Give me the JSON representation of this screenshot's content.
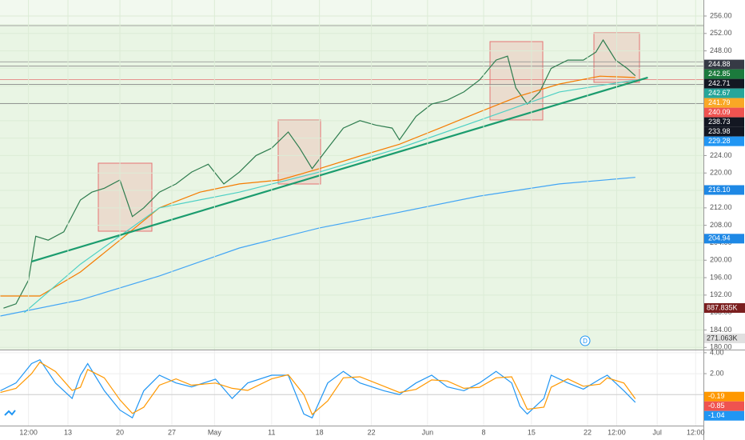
{
  "chart_data": [
    {
      "type": "line",
      "xlim": [
        -1.54,
        66.15
      ],
      "ylim": [
        179.5,
        259.67
      ],
      "yticks": [
        {
          "value": 256,
          "label": "256.00"
        },
        {
          "value": 252,
          "label": "252.00"
        },
        {
          "value": 248,
          "label": "248.00"
        },
        {
          "value": 244,
          "label": "244.00"
        },
        {
          "value": 240,
          "label": "240.00"
        },
        {
          "value": 236,
          "label": "236.00"
        },
        {
          "value": 232,
          "label": "232.00"
        },
        {
          "value": 228,
          "label": "228.00"
        },
        {
          "value": 224,
          "label": "224.00"
        },
        {
          "value": 220,
          "label": "220.00"
        },
        {
          "value": 216,
          "label": "216.00"
        },
        {
          "value": 212,
          "label": "212.00"
        },
        {
          "value": 208,
          "label": "208.00"
        },
        {
          "value": 204,
          "label": "204.00"
        },
        {
          "value": 200,
          "label": "200.00"
        },
        {
          "value": 196,
          "label": "196.00"
        },
        {
          "value": 192,
          "label": "192.00"
        },
        {
          "value": 188,
          "label": "188.00"
        },
        {
          "value": 184,
          "label": "184.00"
        },
        {
          "value": 180,
          "label": "180.00"
        }
      ],
      "grid": true,
      "series": [
        {
          "color": "#2e7d4f",
          "x": [
            -1.2,
            0,
            1.2,
            1.9,
            3.1,
            4.6,
            6.2,
            7.3,
            8.5,
            10,
            11.2,
            12.3,
            13.8,
            15.4,
            16.9,
            18.5,
            20,
            21.5,
            23.1,
            24.6,
            26.2,
            27.3,
            28.5,
            30,
            31.5,
            33.1,
            34.6,
            36.2,
            36.9,
            38.5,
            40,
            41.5,
            43.1,
            44.6,
            46.2,
            47.3,
            48.1,
            49.2,
            50.4,
            51.5,
            53.1,
            54.6,
            55.8,
            56.5,
            57.7,
            58.8,
            59.6
          ],
          "values": [
            189,
            190,
            195.4,
            205.5,
            204.6,
            206.5,
            213.8,
            215.6,
            216.5,
            218.4,
            210,
            212,
            215.6,
            217.5,
            220.2,
            222,
            217.5,
            220.2,
            224,
            225.7,
            229.4,
            225.7,
            221,
            225.7,
            230.3,
            232,
            231,
            230.3,
            227.6,
            233,
            235.8,
            236.7,
            238.6,
            241.3,
            245.9,
            246.8,
            239.5,
            235.8,
            238.6,
            244,
            245.9,
            245.9,
            247.7,
            250.5,
            245.9,
            244,
            242.3
          ]
        },
        {
          "color": "#f57c00",
          "x": [
            -1.5,
            2.3,
            6.2,
            10,
            13.8,
            17.7,
            21.5,
            25.4,
            29.2,
            33.1,
            36.9,
            40.8,
            44.6,
            48.5,
            52.3,
            56.2,
            59.6
          ],
          "values": [
            191.8,
            191.8,
            197.3,
            204.6,
            212,
            215.6,
            217.5,
            218.4,
            221,
            223.9,
            226.6,
            230.3,
            234,
            237.7,
            240.4,
            242.2,
            241.9
          ]
        },
        {
          "color": "#4dd0c4",
          "x": [
            0.8,
            6.2,
            13.8,
            21.5,
            29.2,
            36.9,
            44.6,
            52.3,
            59.6
          ],
          "values": [
            188,
            199.1,
            212,
            215.6,
            220.2,
            225.7,
            232.1,
            238.6,
            241.3
          ]
        },
        {
          "color": "#42a5f5",
          "x": [
            -1.5,
            6.2,
            13.8,
            21.5,
            29.2,
            36.9,
            44.6,
            52.3,
            59.6
          ],
          "values": [
            187.2,
            190.9,
            196.4,
            202.8,
            207.4,
            211,
            214.7,
            217.5,
            219
          ]
        },
        {
          "color": "#1b9c6e",
          "x": [
            1.5,
            60.8
          ],
          "values": [
            199.7,
            241.9
          ]
        }
      ],
      "hlines": [
        253.8,
        245.5,
        244.5,
        241.4,
        240.3,
        235.9
      ],
      "price_labels": [
        {
          "value": 244.88,
          "label": "244.88",
          "color": "#363a45"
        },
        {
          "value": 242.85,
          "label": "242.85",
          "color": "#1b7a3c"
        },
        {
          "value": 242.71,
          "label": "242.71",
          "color": "#131722"
        },
        {
          "value": 242.67,
          "label": "242.67",
          "color": "#26a69a"
        },
        {
          "value": 241.79,
          "label": "241.79",
          "color": "#f9a825"
        },
        {
          "value": 240.09,
          "label": "240.09",
          "color": "#ef5350"
        },
        {
          "value": 238.73,
          "label": "238.73",
          "color": "#131722"
        },
        {
          "value": 233.98,
          "label": "233.98",
          "color": "#131722"
        },
        {
          "value": 229.28,
          "label": "229.28",
          "color": "#2196f3"
        },
        {
          "value": 216.1,
          "label": "216.10",
          "color": "#1e88e5"
        },
        {
          "value": 204.94,
          "label": "204.94",
          "color": "#1e88e5"
        }
      ],
      "volume_labels": [
        "887.835K",
        "271.063K"
      ],
      "marker_label": "D"
    },
    {
      "type": "line",
      "xlim": [
        -1.54,
        66.15
      ],
      "ylim": [
        -2.96,
        4.22
      ],
      "yticks": [
        {
          "value": 4,
          "label": "4.00"
        },
        {
          "value": 2,
          "label": "2.00"
        }
      ],
      "xticks": [
        {
          "value": 1.2,
          "label": "12:00"
        },
        {
          "value": 5,
          "label": "13"
        },
        {
          "value": 10,
          "label": "20"
        },
        {
          "value": 15,
          "label": "27"
        },
        {
          "value": 19.1,
          "label": "May"
        },
        {
          "value": 24.6,
          "label": "11"
        },
        {
          "value": 29.2,
          "label": "18"
        },
        {
          "value": 34.2,
          "label": "22"
        },
        {
          "value": 39.6,
          "label": "Jun"
        },
        {
          "value": 45,
          "label": "8"
        },
        {
          "value": 49.6,
          "label": "15"
        },
        {
          "value": 55,
          "label": "22"
        },
        {
          "value": 57.8,
          "label": "12:00"
        },
        {
          "value": 61.7,
          "label": "Jul"
        },
        {
          "value": 65.4,
          "label": "12:00"
        }
      ],
      "series": [
        {
          "color": "#2196f3",
          "x": [
            -1.5,
            0,
            1.5,
            2.3,
            3.8,
            5.4,
            6.2,
            6.9,
            8.5,
            10,
            11.2,
            12.3,
            13.8,
            15.4,
            16.9,
            19.2,
            20.8,
            22.3,
            24.6,
            26.2,
            27.7,
            28.5,
            30,
            31.5,
            33.1,
            35.4,
            36.9,
            38.5,
            40,
            41.5,
            43.1,
            44.6,
            46.2,
            47.7,
            48.5,
            49.2,
            50.8,
            51.5,
            53.1,
            54.6,
            56.2,
            56.9,
            58.5,
            59.6
          ],
          "values": [
            0.37,
            1.11,
            2.96,
            3.33,
            1.11,
            -0.37,
            1.85,
            2.96,
            0.37,
            -1.48,
            -2.22,
            0.37,
            1.85,
            1.11,
            0.74,
            1.48,
            -0.37,
            1.11,
            1.85,
            1.85,
            -1.85,
            -2.22,
            1.11,
            2.22,
            1.11,
            0.37,
            0,
            1.11,
            1.85,
            0.74,
            0.37,
            1.11,
            2.22,
            1.11,
            -1.11,
            -1.85,
            -0.37,
            1.85,
            1.11,
            0.52,
            1.48,
            1.85,
            0.37,
            -0.74
          ]
        },
        {
          "color": "#ff9800",
          "x": [
            -1.5,
            0,
            1.5,
            2.3,
            3.8,
            5.4,
            6.2,
            6.9,
            8.5,
            10,
            11.2,
            12.3,
            13.8,
            15.4,
            16.9,
            19.2,
            20.8,
            22.3,
            24.6,
            26.2,
            27.7,
            28.5,
            30,
            31.5,
            33.1,
            35.4,
            36.9,
            38.5,
            40,
            41.5,
            43.1,
            44.6,
            46.2,
            47.7,
            48.5,
            49.2,
            50.8,
            51.5,
            53.1,
            54.6,
            56.2,
            56.9,
            58.5,
            59.6
          ],
          "values": [
            0.2,
            0.6,
            2,
            3.1,
            2.2,
            0.4,
            0.7,
            2.4,
            1.6,
            -0.5,
            -1.8,
            -1.2,
            0.9,
            1.5,
            0.9,
            1.1,
            0.6,
            0.4,
            1.5,
            1.9,
            0,
            -1.9,
            -0.6,
            1.6,
            1.7,
            0.8,
            0.2,
            0.5,
            1.4,
            1.3,
            0.6,
            0.7,
            1.6,
            1.7,
            0.1,
            -1.4,
            -1.2,
            0.7,
            1.5,
            0.8,
            1,
            1.6,
            1.1,
            -0.4
          ]
        }
      ],
      "value_labels": [
        {
          "value": -0.19,
          "label": "-0.19",
          "color": "#ff9800"
        },
        {
          "value": -0.85,
          "label": "-0.85",
          "color": "#ef5350"
        },
        {
          "value": -1.04,
          "label": "-1.04",
          "color": "#2196f3"
        }
      ]
    }
  ]
}
